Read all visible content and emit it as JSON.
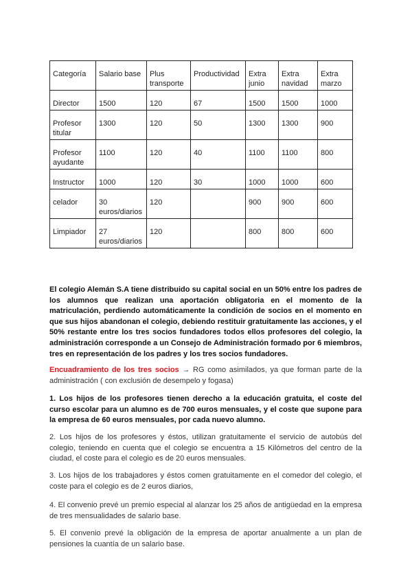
{
  "table": {
    "headers": [
      "Categoría",
      "Salario base",
      "Plus transporte",
      "Productividad",
      "Extra junio",
      "Extra navidad",
      "Extra marzo"
    ],
    "rows": [
      [
        "Director",
        "1500",
        "120",
        "67",
        "1500",
        "1500",
        "1000"
      ],
      [
        "Profesor titular",
        "1300",
        "120",
        "50",
        "1300",
        "1300",
        "900"
      ],
      [
        "Profesor ayudante",
        "1100",
        "120",
        "40",
        "1100",
        "1100",
        "800"
      ],
      [
        "Instructor",
        "1000",
        "120",
        "30",
        "1000",
        "1000",
        "600"
      ],
      [
        "celador",
        "30 euros/diarios",
        "120",
        "",
        "900",
        "900",
        "600"
      ],
      [
        "Limpiador",
        "27 euros/diarios",
        "120",
        "",
        "800",
        "800",
        "600"
      ]
    ]
  },
  "intro": "El colegio Alemán S.A tiene distribuido su capital social en un 50% entre los padres de los alumnos que realizan una aportación obligatoria en el momento de la matriculación, perdiendo automáticamente la condición de socios en el momento en que sus hijos abandonan el colegio, debiendo restituir gratuitamente las acciones, y el 50% restante entre los tres socios fundadores todos ellos profesores del colegio, la administración corresponde a un Consejo de Administración formado por 6 miembros, tres en representación de los padres y los tres socios fundadores.",
  "encuadramiento": {
    "heading": "Encuadramiento de los tres socios",
    "text": " → RG como asimilados, ya que forman parte de la administración ( con exclusión de desempelo y fogasa)"
  },
  "points": [
    "1. Los hijos de los profesores tienen derecho a la educación gratuita, el coste del curso escolar para un alumno es de 700 euros mensuales, y el coste que supone para la empresa de 60 euros mensuales, por cada nuevo alumno.",
    "2. Los hijos de los profesores y éstos, utilizan gratuitamente el servicio de autobús del colegio, teniendo en cuenta que el colegio se encuentra a 15 Kilómetros del centro de la ciudad, el coste para el colegio es de  20 euros mensuales.",
    "3. Los hijos de los trabajadores y éstos comen gratuitamente en el comedor del colegio, el coste para el colegio  es de 2 euros diarios,",
    "4. El convenio prevé un premio especial al alanzar los 25 años de antigüedad en la empresa de tres mensualidades de salario base.",
    "5. El convenio prevé la obligación de la empresa de aportar anualmente a un plan de pensiones la cuantía de un salario base."
  ],
  "colors": {
    "heading_red": "#e8141b"
  }
}
